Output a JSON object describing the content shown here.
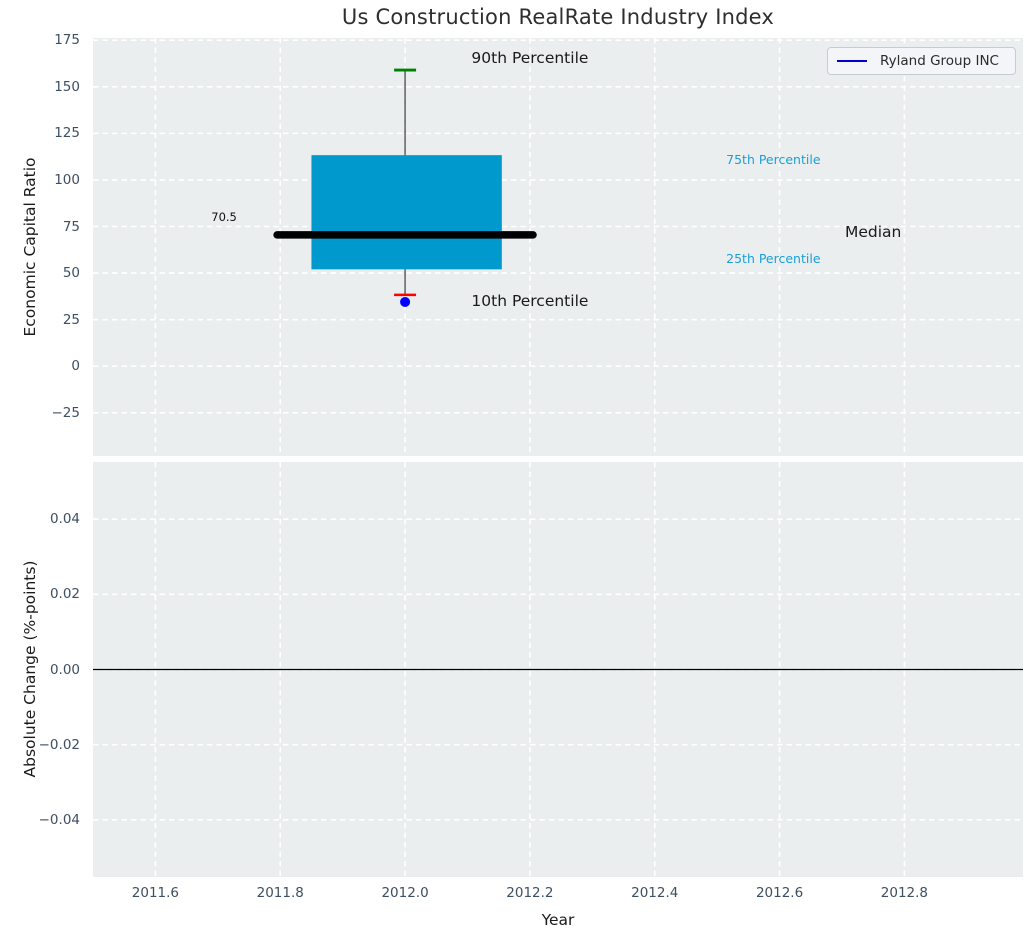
{
  "title": "Us Construction RealRate Industry Index",
  "legend": {
    "label": "Ryland Group INC",
    "line_color": "#0000cd"
  },
  "colors": {
    "axes_background": "#eaeeef",
    "grid": "#ffffff",
    "box_fill": "#0099cd",
    "median_line": "#000000",
    "whisker": "#555555",
    "cap_high": "#008000",
    "cap_low": "#ff0000",
    "company_point": "#0000ff",
    "percentile_label": "#1b9fd8",
    "tick_label": "#3d4f63",
    "zero_line": "#000000"
  },
  "xticks": [
    {
      "v": 2011.6,
      "label": "2011.6"
    },
    {
      "v": 2011.8,
      "label": "2011.8"
    },
    {
      "v": 2012.0,
      "label": "2012.0"
    },
    {
      "v": 2012.2,
      "label": "2012.2"
    },
    {
      "v": 2012.4,
      "label": "2012.4"
    },
    {
      "v": 2012.6,
      "label": "2012.6"
    },
    {
      "v": 2012.8,
      "label": "2012.8"
    }
  ],
  "chart_data": [
    {
      "type": "boxplot",
      "title": "Us Construction RealRate Industry Index",
      "ylabel": "Economic Capital Ratio",
      "xlabel": "",
      "xlim": [
        2011.5,
        2012.99
      ],
      "ylim": [
        -48.2,
        176.2
      ],
      "grid": "white dashed on light gray",
      "yticks": [
        {
          "v": 175,
          "label": "175"
        },
        {
          "v": 150,
          "label": "150"
        },
        {
          "v": 125,
          "label": "125"
        },
        {
          "v": 100,
          "label": "100"
        },
        {
          "v": 75,
          "label": "75"
        },
        {
          "v": 50,
          "label": "50"
        },
        {
          "v": 25,
          "label": "25"
        },
        {
          "v": 0,
          "label": "0"
        },
        {
          "v": -25,
          "label": "−25"
        }
      ],
      "box": {
        "x": 2012.0,
        "box_left": 2011.85,
        "box_right": 2012.155,
        "q1": 52,
        "q3": 113.3,
        "median": 70.5,
        "median_x1": 2011.795,
        "median_x2": 2012.205,
        "whisker_high": 159,
        "whisker_low": 38.3,
        "company_point_value": 34.5,
        "company_name": "Ryland Group INC"
      },
      "annotations": [
        {
          "text": "90th Percentile",
          "x": 2012.2,
          "y": 164.8,
          "color": "#1a1a1a",
          "size": 15.5
        },
        {
          "text": "75th Percentile",
          "x": 2012.59,
          "y": 110.5,
          "color": "#1b9fd8",
          "size": 12.5
        },
        {
          "text": "Median",
          "x": 2012.75,
          "y": 71.0,
          "color": "#1a1a1a",
          "size": 15.5
        },
        {
          "text": "25th Percentile",
          "x": 2012.59,
          "y": 57.0,
          "color": "#1b9fd8",
          "size": 12.5
        },
        {
          "text": "10th Percentile",
          "x": 2012.2,
          "y": 34.4,
          "color": "#1a1a1a",
          "size": 15.5
        },
        {
          "text": "70.5",
          "x": 2011.71,
          "y": 79.3,
          "color": "#111111",
          "size": 11.5
        }
      ],
      "legend_position": "upper right"
    },
    {
      "type": "line",
      "ylabel": "Absolute Change (%-points)",
      "xlabel": "Year",
      "xlim": [
        2011.5,
        2012.99
      ],
      "ylim": [
        -0.0552,
        0.0552
      ],
      "grid": "white dashed on light gray",
      "yticks": [
        {
          "v": 0.04,
          "label": "0.04"
        },
        {
          "v": 0.02,
          "label": "0.02"
        },
        {
          "v": 0.0,
          "label": "0.00"
        },
        {
          "v": -0.02,
          "label": "−0.02"
        },
        {
          "v": -0.04,
          "label": "−0.04"
        }
      ],
      "zero_line": 0.0,
      "series": []
    }
  ]
}
